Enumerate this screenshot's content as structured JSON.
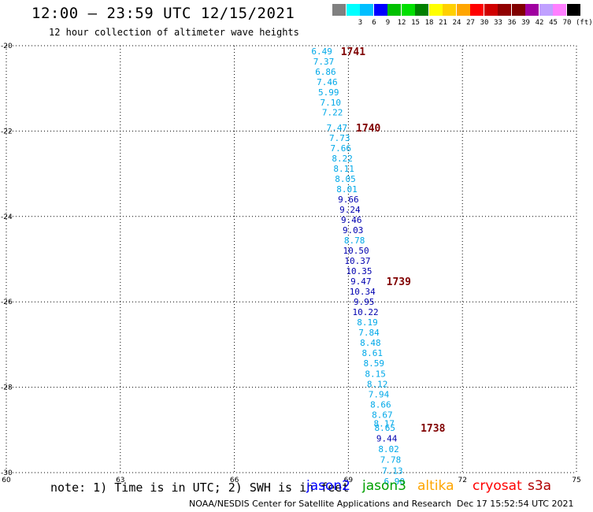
{
  "header": {
    "title": "12:00 – 23:59 UTC 12/15/2021",
    "subtitle": "12 hour collection of altimeter wave heights"
  },
  "color_scale": {
    "unit": "(ft)",
    "swatches": [
      {
        "label": "",
        "color": "#808080"
      },
      {
        "label": "3",
        "color": "#00ffff"
      },
      {
        "label": "6",
        "color": "#00bfff"
      },
      {
        "label": "9",
        "color": "#0000ff"
      },
      {
        "label": "12",
        "color": "#00c000"
      },
      {
        "label": "15",
        "color": "#00e000"
      },
      {
        "label": "18",
        "color": "#008000"
      },
      {
        "label": "21",
        "color": "#ffff00"
      },
      {
        "label": "24",
        "color": "#ffd000"
      },
      {
        "label": "27",
        "color": "#ffa500"
      },
      {
        "label": "30",
        "color": "#ff0000"
      },
      {
        "label": "33",
        "color": "#d00000"
      },
      {
        "label": "36",
        "color": "#900000"
      },
      {
        "label": "39",
        "color": "#800000"
      },
      {
        "label": "42",
        "color": "#a000a0"
      },
      {
        "label": "45",
        "color": "#c0a0ff"
      },
      {
        "label": "70",
        "color": "#ff80ff"
      },
      {
        "label": "",
        "color": "#000000"
      }
    ]
  },
  "footer": {
    "note": "note: 1) Time is in UTC; 2) SWH is in feet",
    "credit": "NOAA/NESDIS Center for Satellite Applications and Research",
    "timestamp": "Dec 17 15:52:54 UTC 2021",
    "legend": [
      {
        "label": "jason2",
        "color": "#0000ff"
      },
      {
        "label": "jason3",
        "color": "#00a000"
      },
      {
        "label": "altika",
        "color": "#ffa500"
      },
      {
        "label": "cryosat",
        "color": "#ff0000"
      },
      {
        "label": "s3a",
        "color": "#b00000"
      }
    ]
  },
  "chart_data": {
    "type": "scatter",
    "title": "12:00 – 23:59 UTC 12/15/2021",
    "subtitle": "12 hour collection of altimeter wave heights",
    "xlim": [
      60,
      75
    ],
    "ylim": [
      -30,
      -20
    ],
    "x_ticks": [
      "60",
      "63",
      "66",
      "69",
      "72",
      "75"
    ],
    "y_ticks": [
      "-20",
      "-22",
      "-24",
      "-26",
      "-28",
      "-30"
    ],
    "grid": true,
    "colors": {
      "light": "#00a8e8",
      "dark": "#0000b0",
      "time": "#800000"
    },
    "points": [
      {
        "lon": 68.3,
        "lat": -20.13,
        "swh": "6.49",
        "color": "light"
      },
      {
        "lon": 68.35,
        "lat": -20.37,
        "swh": "7.37",
        "color": "light"
      },
      {
        "lon": 68.4,
        "lat": -20.61,
        "swh": "6.86",
        "color": "light"
      },
      {
        "lon": 68.44,
        "lat": -20.85,
        "swh": "7.46",
        "color": "light"
      },
      {
        "lon": 68.48,
        "lat": -21.09,
        "swh": "5.99",
        "color": "light"
      },
      {
        "lon": 68.53,
        "lat": -21.33,
        "swh": "7.10",
        "color": "light"
      },
      {
        "lon": 68.58,
        "lat": -21.56,
        "swh": "7.22",
        "color": "light"
      },
      {
        "lon": 68.7,
        "lat": -21.92,
        "swh": "7.47",
        "color": "light"
      },
      {
        "lon": 68.77,
        "lat": -22.16,
        "swh": "7.73",
        "color": "light"
      },
      {
        "lon": 68.8,
        "lat": -22.4,
        "swh": "7.66",
        "color": "light"
      },
      {
        "lon": 68.84,
        "lat": -22.64,
        "swh": "8.22",
        "color": "light"
      },
      {
        "lon": 68.88,
        "lat": -22.88,
        "swh": "8.11",
        "color": "light"
      },
      {
        "lon": 68.92,
        "lat": -23.12,
        "swh": "8.05",
        "color": "light"
      },
      {
        "lon": 68.96,
        "lat": -23.36,
        "swh": "8.01",
        "color": "light"
      },
      {
        "lon": 69.0,
        "lat": -23.6,
        "swh": "9.66",
        "color": "dark"
      },
      {
        "lon": 69.04,
        "lat": -23.84,
        "swh": "9.24",
        "color": "dark"
      },
      {
        "lon": 69.08,
        "lat": -24.08,
        "swh": "9.46",
        "color": "dark"
      },
      {
        "lon": 69.12,
        "lat": -24.32,
        "swh": "9.03",
        "color": "dark"
      },
      {
        "lon": 69.16,
        "lat": -24.56,
        "swh": "8.78",
        "color": "light"
      },
      {
        "lon": 69.2,
        "lat": -24.8,
        "swh": "10.50",
        "color": "dark"
      },
      {
        "lon": 69.24,
        "lat": -25.04,
        "swh": "10.37",
        "color": "dark"
      },
      {
        "lon": 69.28,
        "lat": -25.28,
        "swh": "10.35",
        "color": "dark"
      },
      {
        "lon": 69.33,
        "lat": -25.52,
        "swh": "9.47",
        "color": "dark"
      },
      {
        "lon": 69.37,
        "lat": -25.76,
        "swh": "10.34",
        "color": "dark"
      },
      {
        "lon": 69.41,
        "lat": -26.0,
        "swh": "9.95",
        "color": "dark"
      },
      {
        "lon": 69.45,
        "lat": -26.24,
        "swh": "10.22",
        "color": "dark"
      },
      {
        "lon": 69.5,
        "lat": -26.48,
        "swh": "8.19",
        "color": "light"
      },
      {
        "lon": 69.54,
        "lat": -26.72,
        "swh": "7.84",
        "color": "light"
      },
      {
        "lon": 69.58,
        "lat": -26.96,
        "swh": "8.48",
        "color": "light"
      },
      {
        "lon": 69.63,
        "lat": -27.2,
        "swh": "8.61",
        "color": "light"
      },
      {
        "lon": 69.67,
        "lat": -27.44,
        "swh": "8.59",
        "color": "light"
      },
      {
        "lon": 69.71,
        "lat": -27.68,
        "swh": "8.15",
        "color": "light"
      },
      {
        "lon": 69.76,
        "lat": -27.92,
        "swh": "8.12",
        "color": "light"
      },
      {
        "lon": 69.8,
        "lat": -28.16,
        "swh": "7.94",
        "color": "light"
      },
      {
        "lon": 69.85,
        "lat": -28.4,
        "swh": "8.66",
        "color": "light"
      },
      {
        "lon": 69.89,
        "lat": -28.64,
        "swh": "8.67",
        "color": "light"
      },
      {
        "lon": 69.94,
        "lat": -28.85,
        "swh": "8.17",
        "color": "light"
      },
      {
        "lon": 69.96,
        "lat": -28.95,
        "swh": "8.65",
        "color": "light"
      },
      {
        "lon": 70.01,
        "lat": -29.2,
        "swh": "9.44",
        "color": "dark"
      },
      {
        "lon": 70.06,
        "lat": -29.45,
        "swh": "8.02",
        "color": "light"
      },
      {
        "lon": 70.11,
        "lat": -29.7,
        "swh": "7.78",
        "color": "light"
      },
      {
        "lon": 70.16,
        "lat": -29.95,
        "swh": "7.13",
        "color": "light"
      },
      {
        "lon": 70.21,
        "lat": -30.2,
        "swh": "6.90",
        "color": "light"
      }
    ],
    "time_labels": [
      {
        "lon": 68.8,
        "lat": -20.13,
        "text": "1741"
      },
      {
        "lon": 69.2,
        "lat": -21.92,
        "text": "1740"
      },
      {
        "lon": 70.0,
        "lat": -25.52,
        "text": "1739"
      },
      {
        "lon": 70.9,
        "lat": -28.95,
        "text": "1738"
      }
    ]
  }
}
